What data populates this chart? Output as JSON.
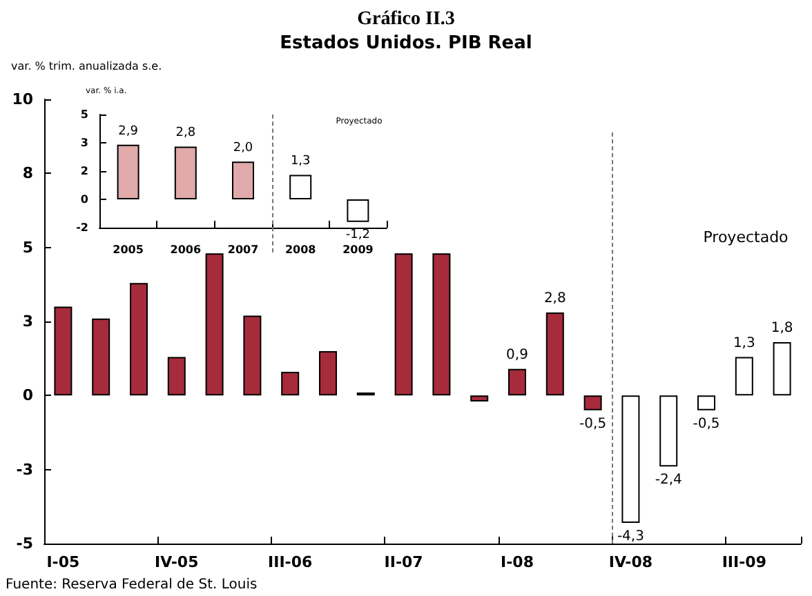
{
  "chart_data": [
    {
      "type": "bar",
      "title": "Gráfico II.3",
      "subtitle": "Estados Unidos. PIB Real",
      "ylabel": "var. % trim. anualizada s.e.",
      "categories": [
        "I-05",
        null,
        null,
        "IV-05",
        null,
        null,
        "III-06",
        null,
        null,
        "II-07",
        null,
        null,
        "I-08",
        null,
        null,
        "IV-08",
        null,
        null,
        "III-09",
        null
      ],
      "values": [
        3.0,
        2.6,
        3.8,
        1.3,
        4.8,
        2.7,
        0.8,
        1.5,
        0.1,
        4.8,
        4.8,
        -0.2,
        0.9,
        2.8,
        -0.5,
        -4.3,
        -2.4,
        -0.5,
        1.3,
        1.8
      ],
      "colors": [
        "#a62b3b",
        "#a62b3b",
        "#a62b3b",
        "#a62b3b",
        "#a62b3b",
        "#a62b3b",
        "#a62b3b",
        "#a62b3b",
        "#a62b3b",
        "#a62b3b",
        "#a62b3b",
        "#a62b3b",
        "#a62b3b",
        "#a62b3b",
        "#a62b3b",
        "#ffffff",
        "#ffffff",
        "#ffffff",
        "#ffffff",
        "#ffffff"
      ],
      "value_labels": [
        null,
        null,
        null,
        null,
        null,
        null,
        null,
        null,
        null,
        null,
        null,
        null,
        "0,9",
        "2,8",
        "-0,5",
        "-4,3",
        "-2,4",
        "-0,5",
        "1,3",
        "1,8"
      ],
      "ylim": [
        -5,
        10
      ],
      "yticks": [
        -5,
        {
          "value": -2.5,
          "label": "-3"
        },
        0,
        {
          "value": 2.5,
          "label": "3"
        },
        5,
        {
          "value": 7.5,
          "label": "8"
        },
        10
      ],
      "annotations": [
        "Fuente: Reserva Federal de St. Louis",
        "Proyectado"
      ],
      "grid": false
    },
    {
      "type": "bar",
      "ylabel": "var. % i.a.",
      "categories": [
        "2005",
        "2006",
        "2007",
        "2008",
        "2009"
      ],
      "values": [
        2.9,
        2.8,
        2.0,
        1.3,
        -1.2
      ],
      "colors": [
        "#e0aaaa",
        "#e0aaaa",
        "#e0aaaa",
        "#ffffff",
        "#ffffff"
      ],
      "value_labels": [
        "2,9",
        "2,8",
        "2,0",
        "1,3",
        "-1,2"
      ],
      "ylim": [
        -1.5,
        4.5
      ],
      "yticks": [
        {
          "value": -1.5,
          "label": "-2"
        },
        0,
        {
          "value": 1.5,
          "label": "2"
        },
        3,
        {
          "value": 4.5,
          "label": "5"
        }
      ],
      "annotations": [
        "Proyectado"
      ],
      "grid": false
    }
  ]
}
